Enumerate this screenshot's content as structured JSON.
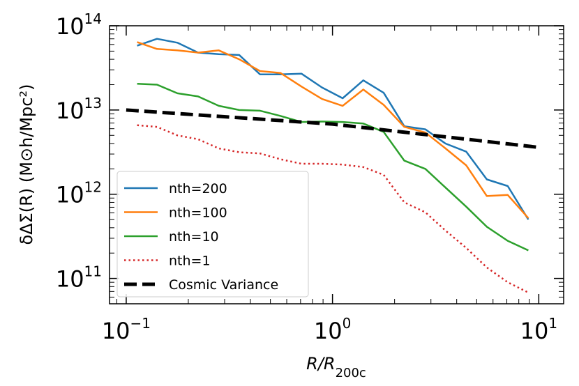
{
  "chart_data": {
    "type": "line",
    "xscale": "log",
    "yscale": "log",
    "xlim": [
      0.083,
      13.2
    ],
    "ylim": [
      50000000000.0,
      100000000000000.0
    ],
    "xlabel_main": "R/R",
    "xlabel_sub": "200c",
    "ylabel": "δΔΣ(R) (M⊙h/Mpc²)",
    "x_ticks": [
      {
        "value": 0.1,
        "base": "10",
        "exp": "−1"
      },
      {
        "value": 1,
        "base": "10",
        "exp": "0"
      },
      {
        "value": 10,
        "base": "10",
        "exp": "1"
      }
    ],
    "y_ticks": [
      {
        "value": 100000000000.0,
        "base": "10",
        "exp": "11"
      },
      {
        "value": 1000000000000.0,
        "base": "10",
        "exp": "12"
      },
      {
        "value": 10000000000000.0,
        "base": "10",
        "exp": "13"
      },
      {
        "value": 100000000000000.0,
        "base": "10",
        "exp": "14"
      }
    ],
    "legend_position": "lower-left",
    "series": [
      {
        "name": "nth=200",
        "color": "#1f77b4",
        "style": "solid",
        "x": [
          0.113,
          0.141,
          0.177,
          0.223,
          0.281,
          0.353,
          0.445,
          0.56,
          0.707,
          0.89,
          1.12,
          1.41,
          1.77,
          2.23,
          2.82,
          3.53,
          4.45,
          5.6,
          7.07,
          8.9
        ],
        "y": [
          58000000000000.0,
          70000000000000.0,
          63000000000000.0,
          48000000000000.0,
          46000000000000.0,
          45000000000000.0,
          26500000000000.0,
          26500000000000.0,
          27000000000000.0,
          18500000000000.0,
          13800000000000.0,
          22500000000000.0,
          16000000000000.0,
          6400000000000.0,
          5900000000000.0,
          4000000000000.0,
          3200000000000.0,
          1500000000000.0,
          1250000000000.0,
          500000000000.0
        ]
      },
      {
        "name": "nth=100",
        "color": "#ff7f0e",
        "style": "solid",
        "x": [
          0.113,
          0.141,
          0.177,
          0.223,
          0.281,
          0.353,
          0.445,
          0.56,
          0.707,
          0.89,
          1.12,
          1.41,
          1.77,
          2.23,
          2.82,
          3.53,
          4.45,
          5.6,
          7.07,
          8.9
        ],
        "y": [
          64000000000000.0,
          53000000000000.0,
          51000000000000.0,
          48000000000000.0,
          51000000000000.0,
          40000000000000.0,
          29000000000000.0,
          27500000000000.0,
          19000000000000.0,
          13500000000000.0,
          11200000000000.0,
          17500000000000.0,
          11500000000000.0,
          6300000000000.0,
          5400000000000.0,
          3500000000000.0,
          2200000000000.0,
          950000000000.0,
          980000000000.0,
          520000000000.0
        ]
      },
      {
        "name": "nth=10",
        "color": "#2ca02c",
        "style": "solid",
        "x": [
          0.113,
          0.141,
          0.177,
          0.223,
          0.281,
          0.353,
          0.445,
          0.56,
          0.707,
          0.89,
          1.12,
          1.41,
          1.77,
          2.23,
          2.82,
          3.53,
          4.45,
          5.6,
          7.07,
          8.9
        ],
        "y": [
          20500000000000.0,
          20000000000000.0,
          15800000000000.0,
          14500000000000.0,
          11200000000000.0,
          10000000000000.0,
          9800000000000.0,
          8500000000000.0,
          7200000000000.0,
          7300000000000.0,
          7200000000000.0,
          6900000000000.0,
          5500000000000.0,
          2500000000000.0,
          2000000000000.0,
          1200000000000.0,
          710000000000.0,
          410000000000.0,
          280000000000.0,
          215000000000.0
        ]
      },
      {
        "name": "nth=1",
        "color": "#d62728",
        "style": "dotted",
        "x": [
          0.113,
          0.141,
          0.177,
          0.223,
          0.281,
          0.353,
          0.445,
          0.56,
          0.707,
          0.89,
          1.12,
          1.41,
          1.77,
          2.23,
          2.82,
          3.53,
          4.45,
          5.6,
          7.07,
          8.9
        ],
        "y": [
          6600000000000.0,
          6300000000000.0,
          5000000000000.0,
          4500000000000.0,
          3500000000000.0,
          3150000000000.0,
          3050000000000.0,
          2600000000000.0,
          2300000000000.0,
          2300000000000.0,
          2250000000000.0,
          2100000000000.0,
          1700000000000.0,
          800000000000.0,
          610000000000.0,
          370000000000.0,
          230000000000.0,
          135000000000.0,
          90000000000.0,
          68000000000.0
        ]
      },
      {
        "name": "Cosmic Variance",
        "color": "#000000",
        "style": "dashed",
        "x": [
          0.1,
          1,
          10
        ],
        "y": [
          10000000000000.0,
          6800000000000.0,
          3600000000000.0
        ]
      }
    ]
  }
}
